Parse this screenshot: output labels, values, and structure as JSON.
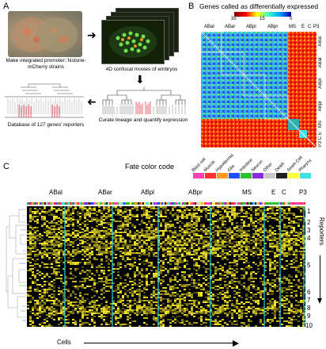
{
  "panelA": {
    "letter": "A",
    "step1": "Make integrated promoter::histone-mCherry strains",
    "step2": "4D confocal movies of embryos",
    "step3": "Curate lineage and quantify expression",
    "step4": "Database of 127 genes' reporters"
  },
  "panelB": {
    "letter": "B",
    "title": "Genes called as differentially expressed",
    "scale_ticks": [
      "35",
      "15",
      "0"
    ],
    "col_labels": [
      "ABal",
      "ABar",
      "ABpl",
      "ABpr",
      "MS",
      "E",
      "C",
      "P3"
    ],
    "row_labels": [
      "ABal",
      "ABar",
      "ABpl",
      "ABpr",
      "MS",
      "E",
      "C",
      "P3"
    ]
  },
  "panelC": {
    "letter": "C",
    "fate_title": "Fate color code",
    "fates": [
      {
        "name": "Blast cell",
        "color": "#ff3fb4"
      },
      {
        "name": "Muscle",
        "color": "#ff3030"
      },
      {
        "name": "Hypodermis",
        "color": "#ff9a1f"
      },
      {
        "name": "Glia",
        "color": "#1f4fff"
      },
      {
        "name": "Intestine",
        "color": "#30c030"
      },
      {
        "name": "Neuron",
        "color": "#8a2be2"
      },
      {
        "name": "Other",
        "color": "#c8c8c8"
      },
      {
        "name": "Death",
        "color": "#202020"
      },
      {
        "name": "Seam Cell",
        "color": "#ffff40"
      },
      {
        "name": "Pharynx",
        "color": "#40e0e0"
      }
    ],
    "lineages": [
      "ABal",
      "ABar",
      "ABpl",
      "ABpr",
      "MS",
      "E",
      "C",
      "P3"
    ],
    "reporter_clusters": [
      "1",
      "2",
      "3",
      "4",
      "5",
      "6",
      "7",
      "8",
      "9",
      "10"
    ],
    "y_axis": "Reporters",
    "x_axis": "Cells"
  }
}
